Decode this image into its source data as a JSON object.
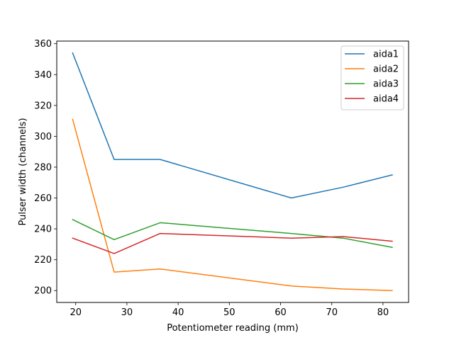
{
  "chart_data": {
    "type": "line",
    "title": "",
    "xlabel": "Potentiometer reading (mm)",
    "ylabel": "Pulser width (channels)",
    "xlim": [
      16.3,
      85.0
    ],
    "ylim": [
      192.3,
      361.7
    ],
    "xticks": [
      20,
      30,
      40,
      50,
      60,
      70,
      80
    ],
    "yticks": [
      200,
      220,
      240,
      260,
      280,
      300,
      320,
      340,
      360
    ],
    "x": [
      19.4,
      27.5,
      36.5,
      62.1,
      72.2,
      81.8
    ],
    "series": [
      {
        "name": "aida1",
        "color": "#1f77b4",
        "values": [
          354,
          285,
          285,
          260,
          267,
          275
        ]
      },
      {
        "name": "aida2",
        "color": "#ff7f0e",
        "values": [
          311,
          212,
          214,
          203,
          201,
          200
        ]
      },
      {
        "name": "aida3",
        "color": "#2ca02c",
        "values": [
          246,
          233,
          244,
          237,
          234,
          228
        ]
      },
      {
        "name": "aida4",
        "color": "#d62728",
        "values": [
          234,
          224,
          237,
          234,
          235,
          232
        ]
      }
    ],
    "legend": "top-right",
    "grid": false
  }
}
